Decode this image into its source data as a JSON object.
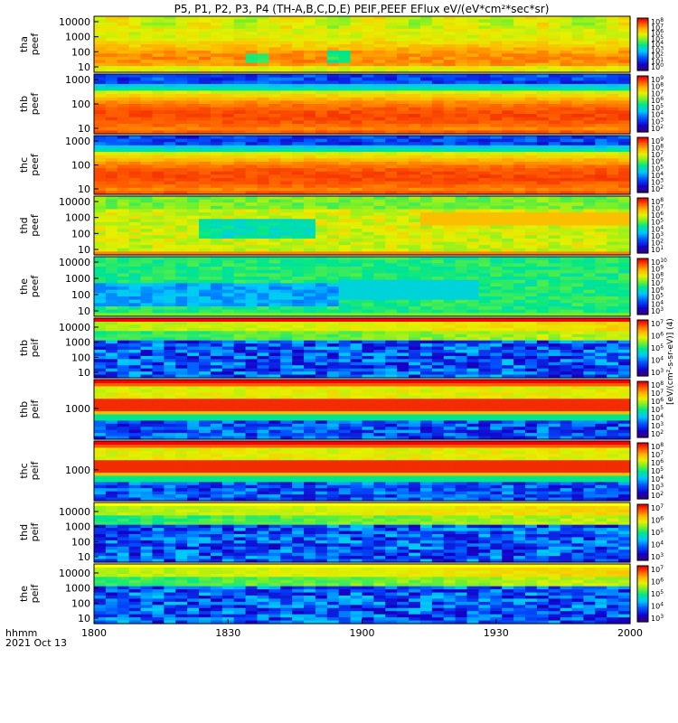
{
  "chart_data": {
    "type": "heatmap",
    "title": "P5, P1, P2, P3, P4 (TH-A,B,C,D,E) PEIF,PEEF EFlux eV/(eV*cm²*sec*sr)",
    "x_label_lines": [
      "hhmm",
      "2021 Oct 13"
    ],
    "x_range": [
      "18:00",
      "20:00"
    ],
    "x_ticks": [
      "1800",
      "1830",
      "1900",
      "1930",
      "2000"
    ],
    "colorbar_label": "[eV/(cm²-s-sr-eV)] (4)",
    "colormap": "rainbow",
    "panels": [
      {
        "name": "tha peef",
        "label_lines": [
          "tha",
          "peef"
        ],
        "y_scale": "log",
        "y_ticks": [
          "10000",
          "1000",
          "100",
          "10"
        ],
        "colorbar_ticks": [
          "10^8",
          "10^7",
          "10^6",
          "10^5",
          "10^4",
          "10^3",
          "10^2",
          "10^1",
          "10^0"
        ],
        "description": "electron energy flux, broad orange/red band with green patches near 1850-1900",
        "pattern": "tha_e"
      },
      {
        "name": "thb peef",
        "label_lines": [
          "thb",
          "peef"
        ],
        "y_scale": "log",
        "y_ticks": [
          "1000",
          "100",
          "10"
        ],
        "colorbar_ticks": [
          "10^9",
          "10^8",
          "10^7",
          "10^6",
          "10^5",
          "10^4",
          "10^3",
          "10^2"
        ],
        "pattern": "thbc_e"
      },
      {
        "name": "thc peef",
        "label_lines": [
          "thc",
          "peef"
        ],
        "y_scale": "log",
        "y_ticks": [
          "1000",
          "100",
          "10"
        ],
        "colorbar_ticks": [
          "10^9",
          "10^8",
          "10^7",
          "10^6",
          "10^5",
          "10^4",
          "10^3",
          "10^2"
        ],
        "pattern": "thbc_e"
      },
      {
        "name": "thd peef",
        "label_lines": [
          "thd",
          "peef"
        ],
        "y_scale": "log",
        "y_ticks": [
          "10000",
          "1000",
          "100",
          "10"
        ],
        "colorbar_ticks": [
          "10^8",
          "10^7",
          "10^6",
          "10^5",
          "10^4",
          "10^3",
          "10^2",
          "10^1"
        ],
        "pattern": "thd_e"
      },
      {
        "name": "the peef",
        "label_lines": [
          "the",
          "peef"
        ],
        "y_scale": "log",
        "y_ticks": [
          "10000",
          "1000",
          "100",
          "10"
        ],
        "colorbar_ticks": [
          "10^10",
          "10^9",
          "10^8",
          "10^7",
          "10^6",
          "10^5",
          "10^4",
          "10^3"
        ],
        "pattern": "the_e"
      },
      {
        "name": "thb peif",
        "label_lines": [
          "thb",
          "peif"
        ],
        "y_scale": "log",
        "y_ticks": [
          "10000",
          "1000",
          "100",
          "10"
        ],
        "colorbar_ticks": [
          "10^7",
          "10^6",
          "10^5",
          "10^4",
          "10^3"
        ],
        "pattern": "ion_low"
      },
      {
        "name": "thb peif",
        "label_lines": [
          "thb",
          "peif"
        ],
        "y_scale": "log",
        "y_ticks": [
          "1000"
        ],
        "colorbar_ticks": [
          "10^8",
          "10^7",
          "10^6",
          "10^5",
          "10^4",
          "10^3",
          "10^2"
        ],
        "pattern": "ion_band"
      },
      {
        "name": "thc peif",
        "label_lines": [
          "thc",
          "peif"
        ],
        "y_scale": "log",
        "y_ticks": [
          "1000"
        ],
        "colorbar_ticks": [
          "10^8",
          "10^7",
          "10^6",
          "10^5",
          "10^4",
          "10^3",
          "10^2"
        ],
        "pattern": "ion_band"
      },
      {
        "name": "thd peif",
        "label_lines": [
          "thd",
          "peif"
        ],
        "y_scale": "log",
        "y_ticks": [
          "10000",
          "1000",
          "100",
          "10"
        ],
        "colorbar_ticks": [
          "10^7",
          "10^6",
          "10^5",
          "10^4",
          "10^3"
        ],
        "pattern": "ion_low"
      },
      {
        "name": "the peif",
        "label_lines": [
          "the",
          "peif"
        ],
        "y_scale": "log",
        "y_ticks": [
          "10000",
          "1000",
          "100",
          "10"
        ],
        "colorbar_ticks": [
          "10^7",
          "10^6",
          "10^5",
          "10^4",
          "10^3"
        ],
        "pattern": "ion_low"
      }
    ]
  }
}
